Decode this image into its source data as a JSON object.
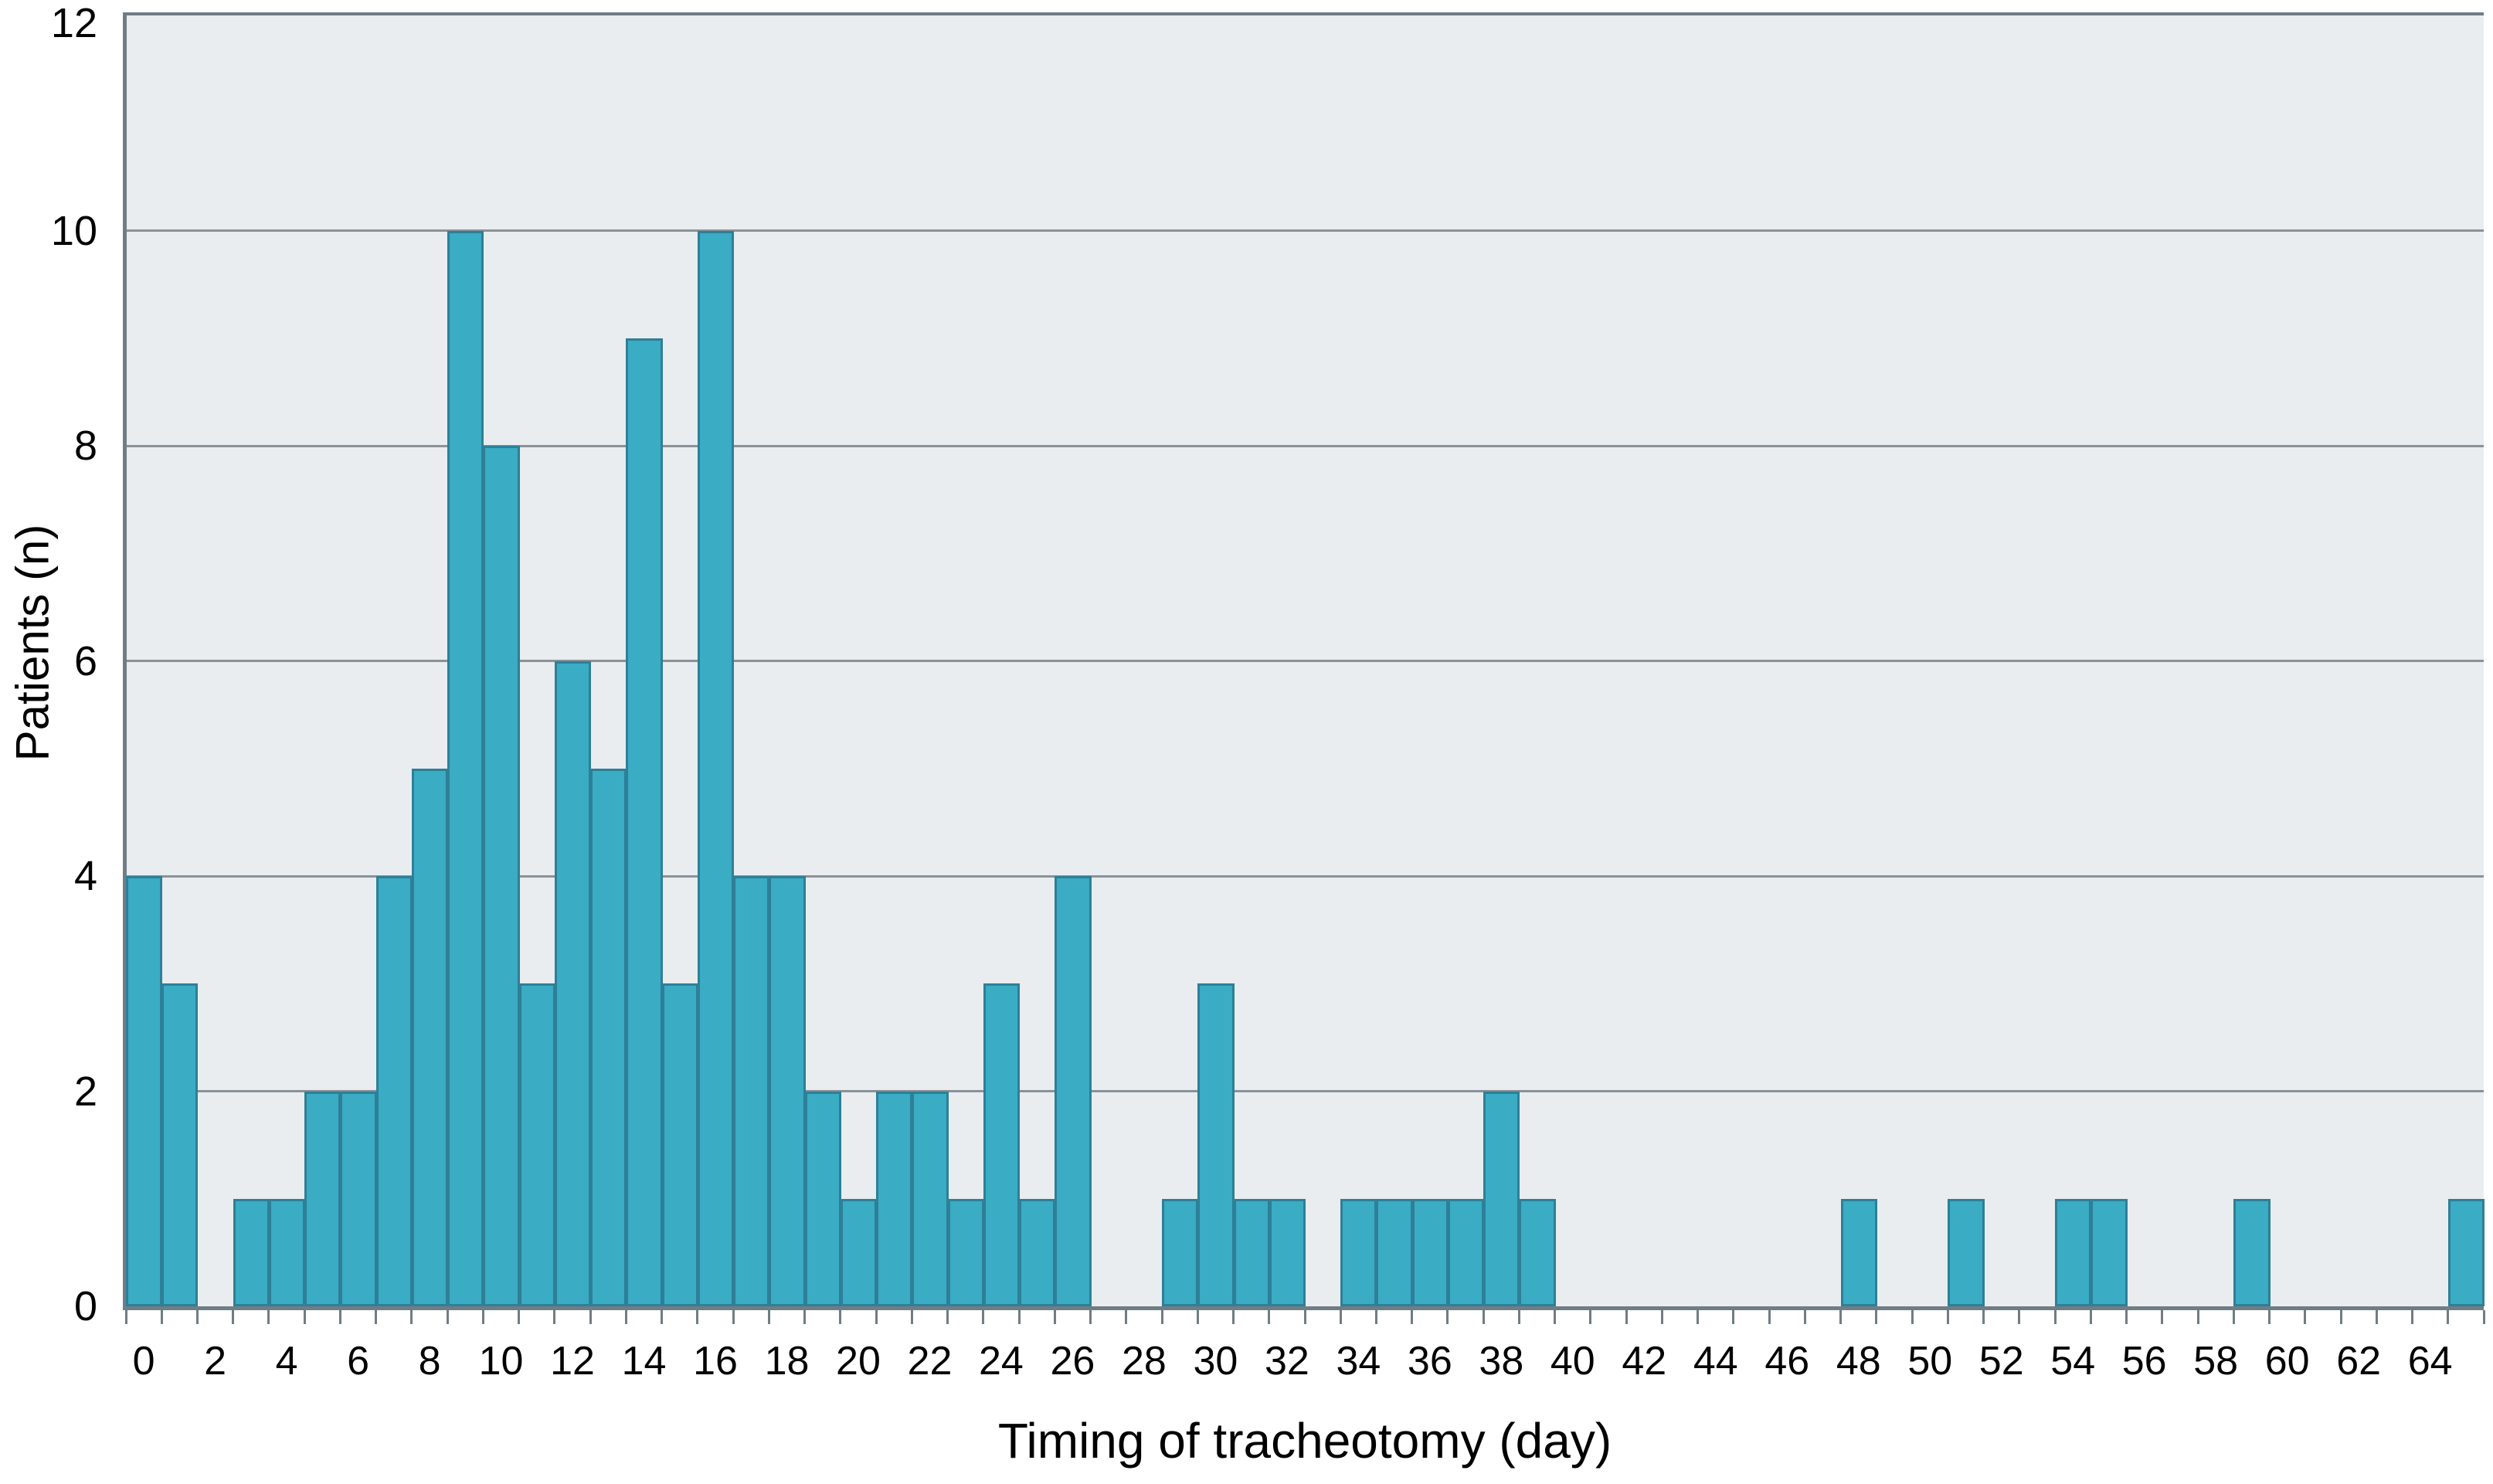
{
  "figure": {
    "kind": "histogram figure",
    "x_axis_title": "Timing of tracheotomy (day)",
    "y_axis_title": "Patients (n)"
  },
  "chart_data": {
    "type": "bar",
    "subtype": "histogram",
    "title": "",
    "xlabel": "Timing of tracheotomy (day)",
    "ylabel": "Patients (n)",
    "bin_width_days": 1,
    "days": [
      0,
      1,
      2,
      3,
      4,
      5,
      6,
      7,
      8,
      9,
      10,
      11,
      12,
      13,
      14,
      15,
      16,
      17,
      18,
      19,
      20,
      21,
      22,
      23,
      24,
      25,
      26,
      27,
      28,
      29,
      30,
      31,
      32,
      33,
      34,
      35,
      36,
      37,
      38,
      39,
      40,
      41,
      42,
      43,
      44,
      45,
      46,
      47,
      48,
      49,
      50,
      51,
      52,
      53,
      54,
      55,
      56,
      57,
      58,
      59,
      60,
      61,
      62,
      63,
      64,
      65
    ],
    "counts": [
      4,
      3,
      0,
      1,
      1,
      2,
      2,
      4,
      5,
      10,
      8,
      3,
      6,
      5,
      9,
      3,
      10,
      4,
      4,
      2,
      1,
      2,
      2,
      1,
      3,
      1,
      4,
      0,
      0,
      1,
      3,
      1,
      1,
      0,
      1,
      1,
      1,
      1,
      2,
      1,
      0,
      0,
      0,
      0,
      0,
      0,
      0,
      0,
      1,
      0,
      0,
      1,
      0,
      0,
      1,
      1,
      0,
      0,
      0,
      1,
      0,
      0,
      0,
      0,
      0,
      1
    ],
    "xlim": [
      -0.5,
      65.5
    ],
    "ylim": [
      0,
      12
    ],
    "x_tick_minor_every_days": 1,
    "x_tick_labels": [
      "0",
      "2",
      "4",
      "6",
      "8",
      "10",
      "12",
      "14",
      "16",
      "18",
      "20",
      "22",
      "24",
      "26",
      "28",
      "30",
      "32",
      "34",
      "36",
      "38",
      "40",
      "42",
      "44",
      "46",
      "48",
      "50",
      "52",
      "54",
      "56",
      "58",
      "60",
      "62",
      "64"
    ],
    "x_tick_label_step": 2,
    "y_tick_labels": [
      "0",
      "2",
      "4",
      "6",
      "8",
      "10",
      "12"
    ],
    "y_tick_step": 2,
    "grid": "horizontal gridlines every 2 units",
    "legend_position": "none",
    "colors": {
      "bar_fill": "#3aacc4",
      "bar_border": "#2e7f97",
      "plot_background": "#e9edef",
      "grid_line": "#8a9299",
      "axis_line": "#6f7d85",
      "text": "#000000",
      "page_background": "#ffffff"
    }
  }
}
